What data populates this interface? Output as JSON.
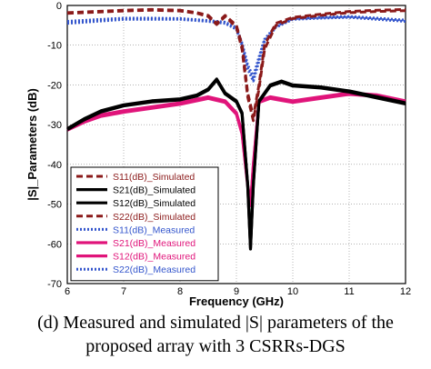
{
  "chart_data": {
    "type": "line",
    "title": "",
    "xlabel": "Frequency (GHz)",
    "ylabel": "|S|_Parameters (dB)",
    "xlim": [
      6,
      12
    ],
    "ylim": [
      -70,
      0
    ],
    "xticks": [
      6,
      7,
      8,
      9,
      10,
      11,
      12
    ],
    "yticks": [
      0,
      -10,
      -20,
      -30,
      -40,
      -50,
      -60,
      -70
    ],
    "grid": true,
    "legend_position": "bottom-left",
    "series": [
      {
        "name": "S11(dB)_Simulated",
        "color": "#8b1a1a",
        "dash": "dashed",
        "x": [
          6,
          6.5,
          7,
          7.5,
          8,
          8.3,
          8.5,
          8.65,
          8.8,
          9,
          9.1,
          9.2,
          9.3,
          9.4,
          9.5,
          9.7,
          10,
          10.5,
          11,
          11.5,
          12
        ],
        "y": [
          -1.8,
          -1.5,
          -1.2,
          -1.0,
          -1.2,
          -1.8,
          -2.5,
          -4.5,
          -2.5,
          -5,
          -10,
          -22,
          -28,
          -20,
          -10,
          -4.5,
          -3,
          -2.2,
          -1.5,
          -1.2,
          -1.0
        ]
      },
      {
        "name": "S21(dB)_Simulated",
        "color": "#000000",
        "dash": "solid",
        "x": [
          6,
          6.3,
          6.6,
          7,
          7.5,
          8,
          8.3,
          8.5,
          8.65,
          8.8,
          9,
          9.1,
          9.2,
          9.25,
          9.3,
          9.4,
          9.6,
          9.8,
          10,
          10.5,
          11,
          11.5,
          12
        ],
        "y": [
          -31,
          -28.5,
          -26.5,
          -25,
          -24,
          -23.5,
          -22.5,
          -21,
          -18.5,
          -22,
          -24,
          -27,
          -45,
          -61,
          -45,
          -24,
          -20,
          -19,
          -20,
          -20.5,
          -21.5,
          -23,
          -24.5
        ]
      },
      {
        "name": "S12(dB)_Simulated",
        "color": "#000000",
        "dash": "solid",
        "x": [
          6,
          6.3,
          6.6,
          7,
          7.5,
          8,
          8.3,
          8.5,
          8.65,
          8.8,
          9,
          9.1,
          9.2,
          9.25,
          9.3,
          9.4,
          9.6,
          9.8,
          10,
          10.5,
          11,
          11.5,
          12
        ],
        "y": [
          -31.3,
          -28.8,
          -26.8,
          -25.3,
          -24.3,
          -23.8,
          -22.8,
          -21.3,
          -18.8,
          -22.3,
          -24.3,
          -27.3,
          -45.3,
          -61.3,
          -45.3,
          -24.3,
          -20.3,
          -19.3,
          -20.3,
          -20.8,
          -21.8,
          -23.3,
          -24.8
        ]
      },
      {
        "name": "S22(dB)_Simulated",
        "color": "#8b1a1a",
        "dash": "dashed",
        "x": [
          6,
          6.5,
          7,
          7.5,
          8,
          8.3,
          8.5,
          8.65,
          8.8,
          9,
          9.1,
          9.2,
          9.3,
          9.4,
          9.5,
          9.7,
          10,
          10.5,
          11,
          11.5,
          12
        ],
        "y": [
          -2.0,
          -1.7,
          -1.4,
          -1.2,
          -1.4,
          -2.0,
          -2.8,
          -4.8,
          -2.8,
          -5.5,
          -11,
          -23,
          -29,
          -21,
          -11,
          -5,
          -3.3,
          -2.5,
          -1.8,
          -1.5,
          -1.3
        ]
      },
      {
        "name": "S11(dB)_Measured",
        "color": "#3355cc",
        "dash": "dotted",
        "x": [
          6,
          6.5,
          7,
          7.5,
          8,
          8.5,
          8.8,
          9,
          9.1,
          9.2,
          9.3,
          9.4,
          9.5,
          9.7,
          10,
          10.5,
          11,
          11.5,
          12
        ],
        "y": [
          -4.5,
          -4.0,
          -3.5,
          -3.5,
          -3.5,
          -4.0,
          -4.5,
          -6,
          -10,
          -16,
          -19,
          -14,
          -9,
          -5.5,
          -3.5,
          -3.2,
          -3.0,
          -3.5,
          -4.0
        ]
      },
      {
        "name": "S21(dB)_Measured",
        "color": "#e0147a",
        "dash": "solid",
        "x": [
          6,
          6.3,
          6.6,
          7,
          7.5,
          8,
          8.5,
          8.8,
          9,
          9.1,
          9.2,
          9.25,
          9.3,
          9.4,
          9.6,
          9.8,
          10,
          10.5,
          11,
          11.5,
          12
        ],
        "y": [
          -31,
          -29,
          -27.5,
          -26.5,
          -25.5,
          -24.5,
          -23,
          -24,
          -27,
          -32,
          -45,
          -50,
          -40,
          -24,
          -23,
          -23.5,
          -24,
          -23,
          -22,
          -22.5,
          -24
        ]
      },
      {
        "name": "S12(dB)_Measured",
        "color": "#e0147a",
        "dash": "solid",
        "x": [
          6,
          6.3,
          6.6,
          7,
          7.5,
          8,
          8.5,
          8.8,
          9,
          9.1,
          9.2,
          9.25,
          9.3,
          9.4,
          9.6,
          9.8,
          10,
          10.5,
          11,
          11.5,
          12
        ],
        "y": [
          -31.4,
          -29.4,
          -27.9,
          -26.9,
          -25.9,
          -24.9,
          -23.4,
          -24.4,
          -27.4,
          -32.4,
          -45.4,
          -50.4,
          -40.4,
          -24.4,
          -23.4,
          -23.9,
          -24.4,
          -23.4,
          -22.4,
          -22.9,
          -24.4
        ]
      },
      {
        "name": "S22(dB)_Measured",
        "color": "#3355cc",
        "dash": "dotted",
        "x": [
          6,
          6.5,
          7,
          7.5,
          8,
          8.5,
          8.8,
          9,
          9.1,
          9.2,
          9.3,
          9.4,
          9.5,
          9.7,
          10,
          10.5,
          11,
          11.5,
          12
        ],
        "y": [
          -4.0,
          -3.6,
          -3.2,
          -3.2,
          -3.3,
          -3.8,
          -4.2,
          -5.6,
          -9.5,
          -15,
          -18,
          -13,
          -8.5,
          -5.2,
          -3.3,
          -3.0,
          -2.8,
          -3.2,
          -3.7
        ]
      }
    ]
  },
  "caption": {
    "line1": "(d) Measured and simulated |S| parameters of the",
    "line2": "proposed array with 3 CSRRs-DGS"
  }
}
